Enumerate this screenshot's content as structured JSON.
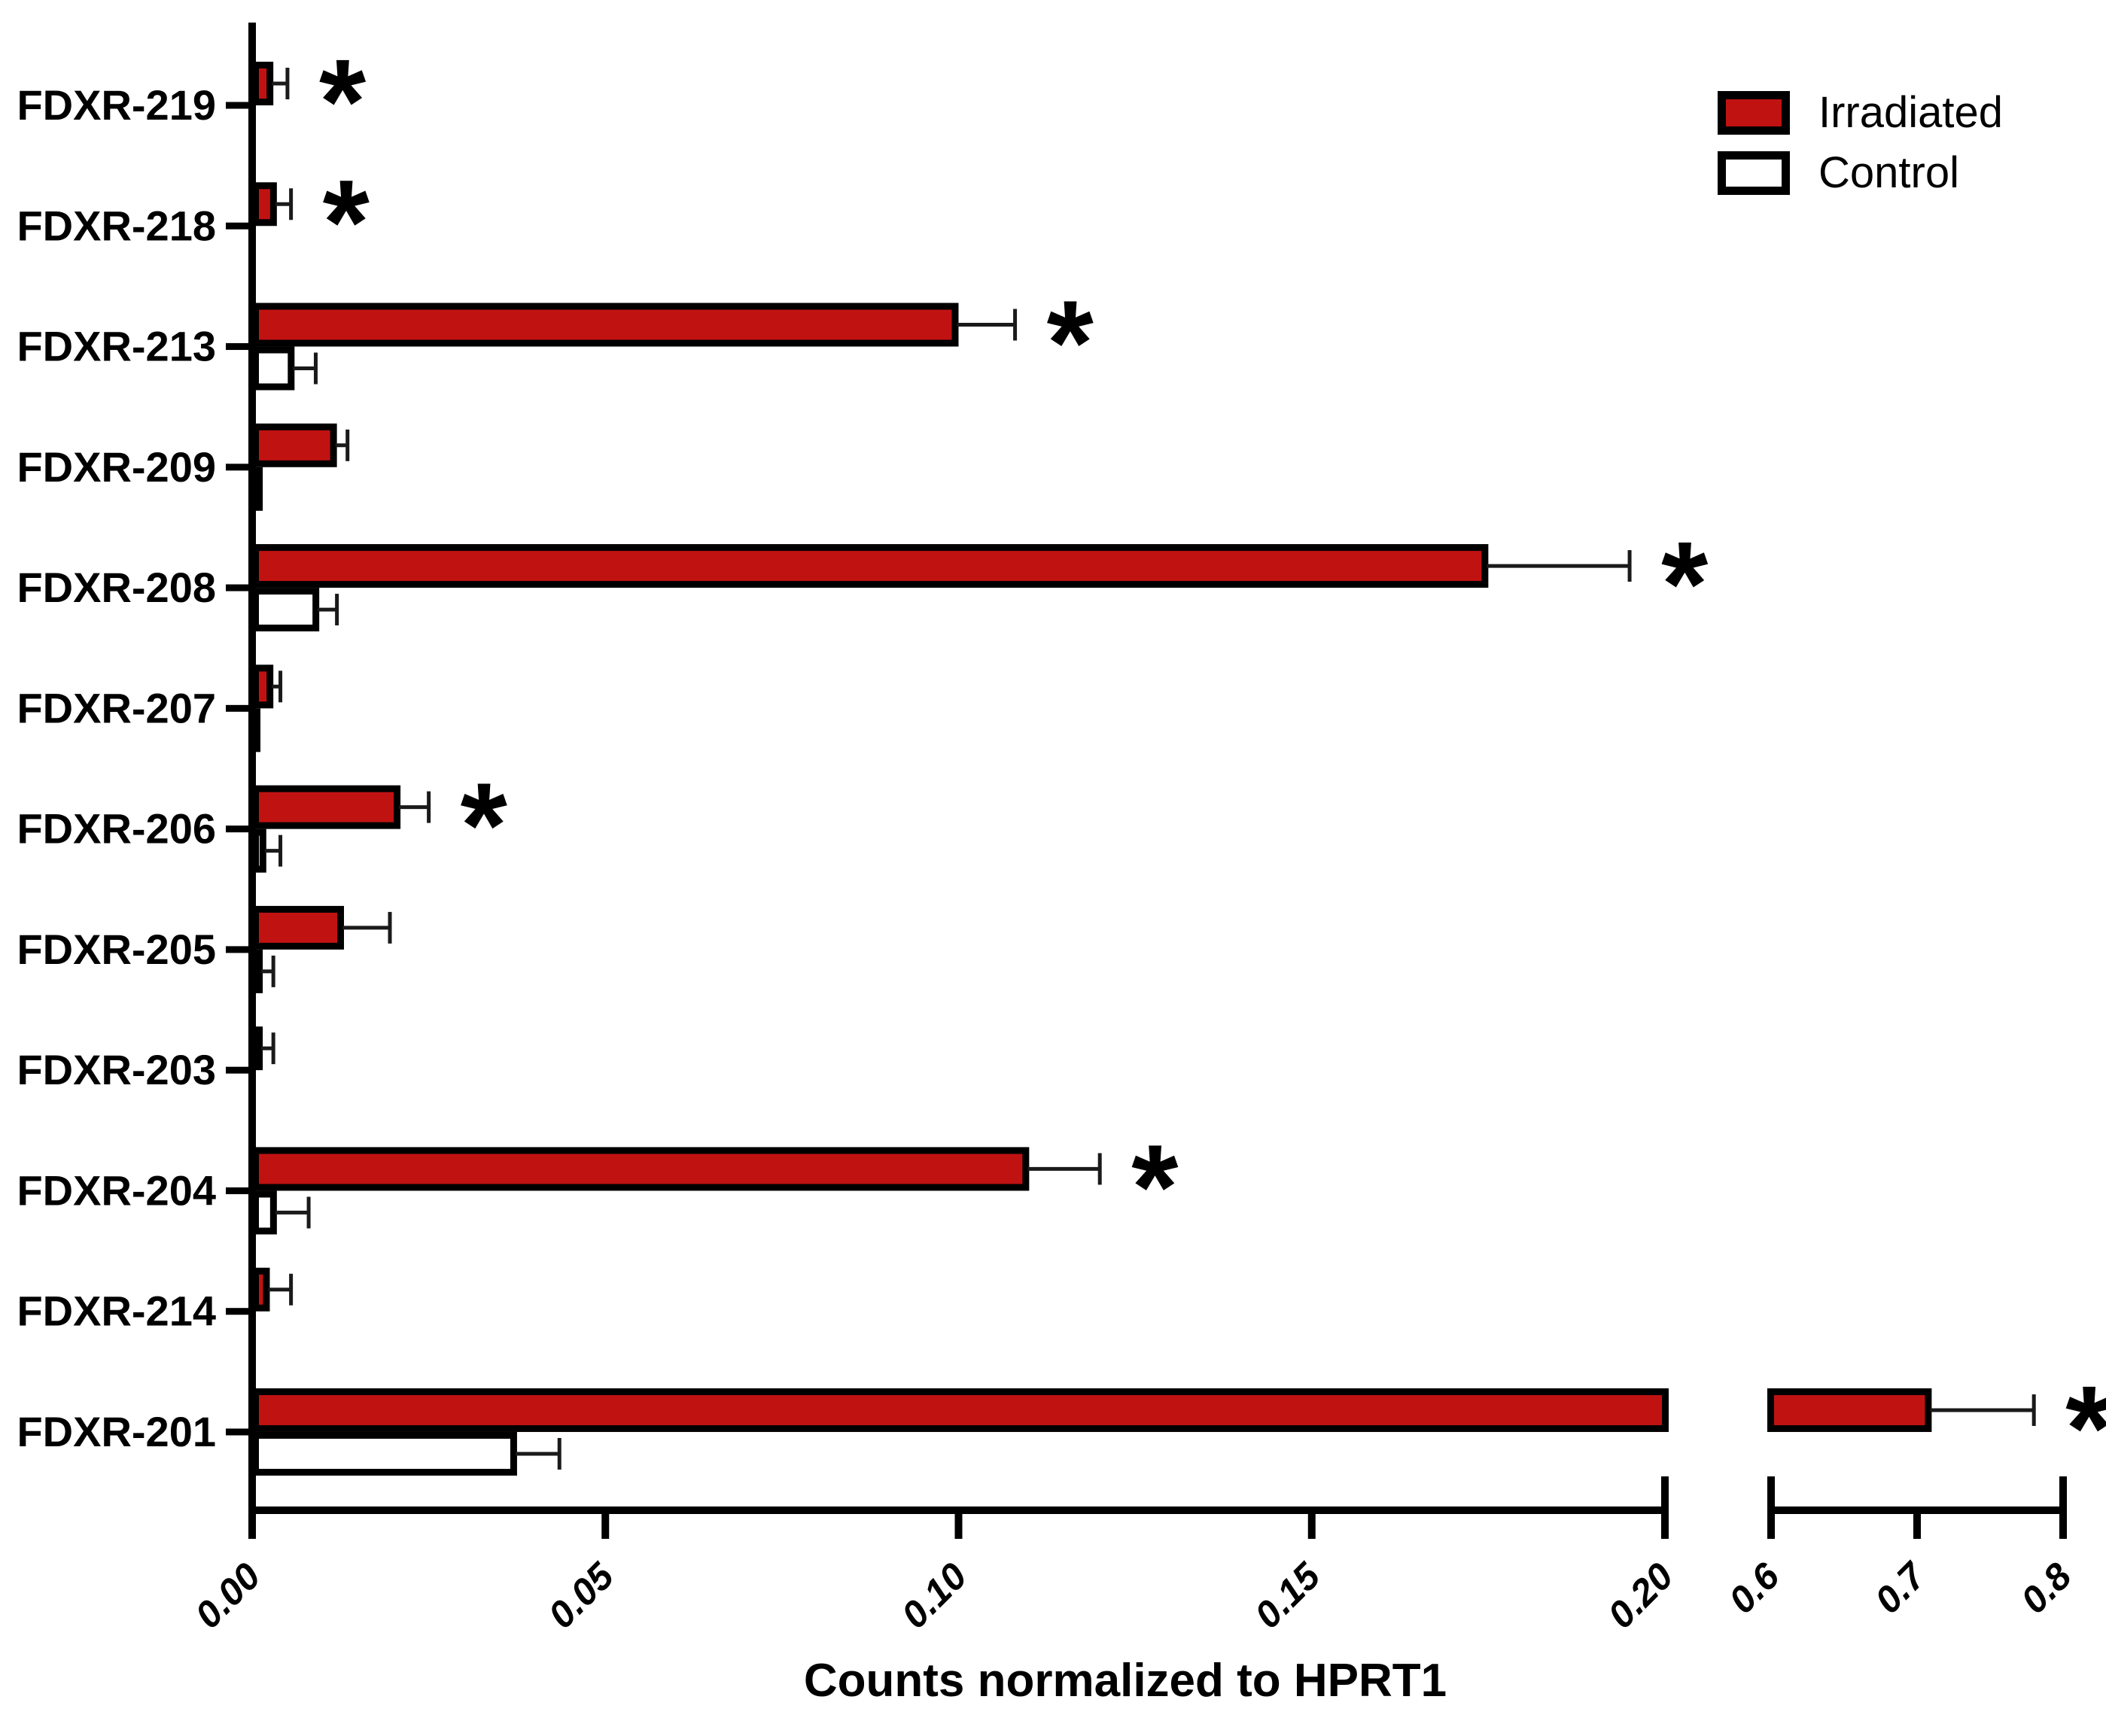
{
  "figure": {
    "background": "#ffffff"
  },
  "legend": {
    "items": [
      {
        "label": "Irradiated",
        "swatch_fill": "#c11212"
      },
      {
        "label": "Control",
        "swatch_fill": "#ffffff"
      }
    ]
  },
  "colors": {
    "bar_red": "#c11212",
    "bar_white": "#ffffff",
    "bar_border": "#000000",
    "error_bar": "#1a1a1a",
    "axis": "#000000",
    "text": "#000000"
  },
  "chart_data": {
    "type": "bar",
    "orientation": "horizontal",
    "title": "",
    "xlabel": "Counts normalized to HPRT1",
    "ylabel": "",
    "grid": false,
    "legend_position": "top-right",
    "significance_marker": "*",
    "categories": [
      "FDXR-219",
      "FDXR-218",
      "FDXR-213",
      "FDXR-209",
      "FDXR-208",
      "FDXR-207",
      "FDXR-206",
      "FDXR-205",
      "FDXR-203",
      "FDXR-204",
      "FDXR-214",
      "FDXR-201"
    ],
    "series": [
      {
        "name": "Irradiated",
        "fill": "#c11212",
        "values": [
          0.003,
          0.0035,
          0.1,
          0.012,
          0.175,
          0.003,
          0.021,
          0.013,
          0.0015,
          0.11,
          0.0025,
          0.71
        ],
        "errors": [
          0.002,
          0.002,
          0.008,
          0.0015,
          0.02,
          0.001,
          0.004,
          0.0065,
          0.0015,
          0.01,
          0.003,
          0.07
        ]
      },
      {
        "name": "Control",
        "fill": "#ffffff",
        "values": [
          0,
          0,
          0.006,
          0.0015,
          0.0095,
          0.001,
          0.002,
          0.0015,
          0,
          0.0035,
          0,
          0.0375
        ],
        "errors": [
          0,
          0,
          0.003,
          0,
          0.0025,
          0,
          0.002,
          0.0015,
          0,
          0.0045,
          0,
          0.006
        ]
      }
    ],
    "significant_categories": [
      "FDXR-219",
      "FDXR-218",
      "FDXR-213",
      "FDXR-208",
      "FDXR-206",
      "FDXR-204",
      "FDXR-201"
    ],
    "x_axis": {
      "break": true,
      "segment1": {
        "range": [
          0,
          0.2
        ],
        "ticks": [
          "0.00",
          "0.05",
          "0.10",
          "0.15",
          "0.20"
        ]
      },
      "segment2": {
        "range": [
          0.6,
          0.8
        ],
        "ticks": [
          "0.6",
          "0.7",
          "0.8"
        ]
      }
    }
  }
}
